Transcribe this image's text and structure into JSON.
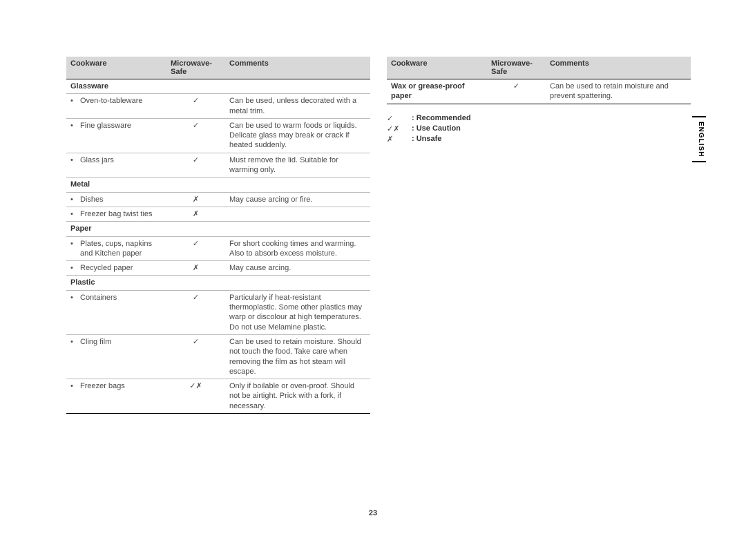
{
  "pageNumber": "23",
  "sideTab": "ENGLISH",
  "headers": {
    "cookware": "Cookware",
    "safe": "Microwave-Safe",
    "comments": "Comments"
  },
  "symbols": {
    "check": "✓",
    "cross": "✗",
    "caution": "✓✗"
  },
  "leftTable": {
    "sections": [
      {
        "title": "Glassware",
        "rows": [
          {
            "item": "Oven-to-tableware",
            "safe": "✓",
            "comment": "Can be used, unless decorated with a metal trim."
          },
          {
            "item": "Fine glassware",
            "safe": "✓",
            "comment": "Can be used to warm foods or liquids. Delicate glass may break or crack if heated suddenly."
          },
          {
            "item": "Glass jars",
            "safe": "✓",
            "comment": "Must remove the lid. Suitable for warming only."
          }
        ]
      },
      {
        "title": "Metal",
        "rows": [
          {
            "item": "Dishes",
            "safe": "✗",
            "comment": "May cause arcing or fire."
          },
          {
            "item": "Freezer bag twist ties",
            "safe": "✗",
            "comment": ""
          }
        ]
      },
      {
        "title": "Paper",
        "rows": [
          {
            "item": "Plates, cups, napkins and Kitchen paper",
            "safe": "✓",
            "comment": "For short cooking times and warming. Also to absorb excess moisture."
          },
          {
            "item": "Recycled paper",
            "safe": "✗",
            "comment": "May cause arcing."
          }
        ]
      },
      {
        "title": "Plastic",
        "rows": [
          {
            "item": "Containers",
            "safe": "✓",
            "comment": "Particularly if heat-resistant thermoplastic. Some other plastics may warp or discolour at high temperatures. Do not use Melamine plastic."
          },
          {
            "item": "Cling film",
            "safe": "✓",
            "comment": "Can be used to retain moisture. Should not touch the food. Take care when removing the film as hot steam will escape."
          },
          {
            "item": "Freezer bags",
            "safe": "✓✗",
            "comment": "Only if boilable or oven-proof. Should not be airtight. Prick with a fork, if necessary."
          }
        ]
      }
    ]
  },
  "rightTable": {
    "rows": [
      {
        "item": "Wax or grease-proof paper",
        "bold": true,
        "safe": "✓",
        "comment": "Can be used to retain moisture and prevent spattering."
      }
    ]
  },
  "legend": [
    {
      "sym": "✓",
      "label": ": Recommended"
    },
    {
      "sym": "✓✗",
      "label": ": Use Caution"
    },
    {
      "sym": "✗",
      "label": ": Unsafe"
    }
  ]
}
